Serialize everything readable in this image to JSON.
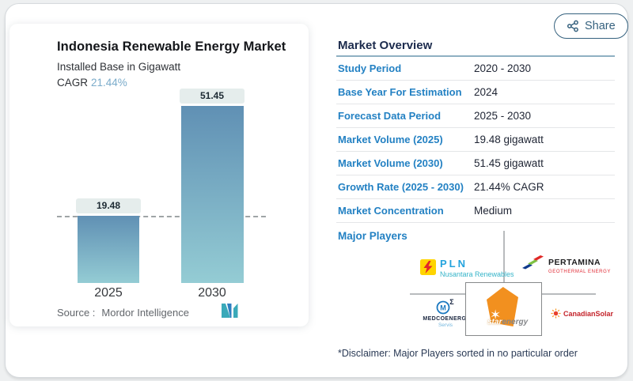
{
  "page": {
    "share_button": {
      "label": "Share"
    },
    "disclaimer": "*Disclaimer: Major Players sorted in no particular order"
  },
  "chart_card": {
    "title": "Indonesia Renewable Energy Market",
    "subtitle": "Installed Base in Gigawatt",
    "cagr_label": "CAGR",
    "cagr_value": "21.44%",
    "source_label": "Source :",
    "source_name": "Mordor Intelligence"
  },
  "chart_data": {
    "type": "bar",
    "categories": [
      "2025",
      "2030"
    ],
    "values": [
      19.48,
      51.45
    ],
    "value_labels": [
      "19.48",
      "51.45"
    ],
    "title": "Indonesia Renewable Energy Market",
    "subtitle": "Installed Base in Gigawatt",
    "unit": "gigawatt",
    "ylim": [
      0,
      51.45
    ],
    "reference_line": 19.48,
    "grid": false,
    "legend": false,
    "bar_gradient_top": "#6090b4",
    "bar_gradient_bottom": "#94ccd4"
  },
  "overview": {
    "heading": "Market Overview",
    "rows": [
      {
        "label": "Study Period",
        "value": "2020 - 2030"
      },
      {
        "label": "Base Year For Estimation",
        "value": "2024"
      },
      {
        "label": "Forecast Data Period",
        "value": "2025 - 2030"
      },
      {
        "label": "Market Volume (2025)",
        "value": "19.48 gigawatt"
      },
      {
        "label": "Market Volume (2030)",
        "value": "51.45 gigawatt"
      },
      {
        "label": "Growth Rate (2025 - 2030)",
        "value": "21.44% CAGR"
      },
      {
        "label": "Market Concentration",
        "value": "Medium"
      }
    ],
    "major_players_label": "Major Players",
    "players": {
      "pln": {
        "name": "PLN",
        "sub": "Nusantara Renewables"
      },
      "pertamina": {
        "name": "PERTAMINA",
        "sub": "GEOTHERMAL ENERGY"
      },
      "medco": {
        "name": "MEDCOENERGI",
        "sub": "Servis"
      },
      "star": {
        "word1": "star",
        "word2": "energy"
      },
      "canadian": {
        "name": "CanadianSolar"
      }
    }
  },
  "colors": {
    "accent_label_blue": "#2381c3",
    "cagr_blue": "#7aabca",
    "share_border": "#35617e",
    "heading_navy": "#1c2b4d",
    "star_glyph": "✶"
  }
}
